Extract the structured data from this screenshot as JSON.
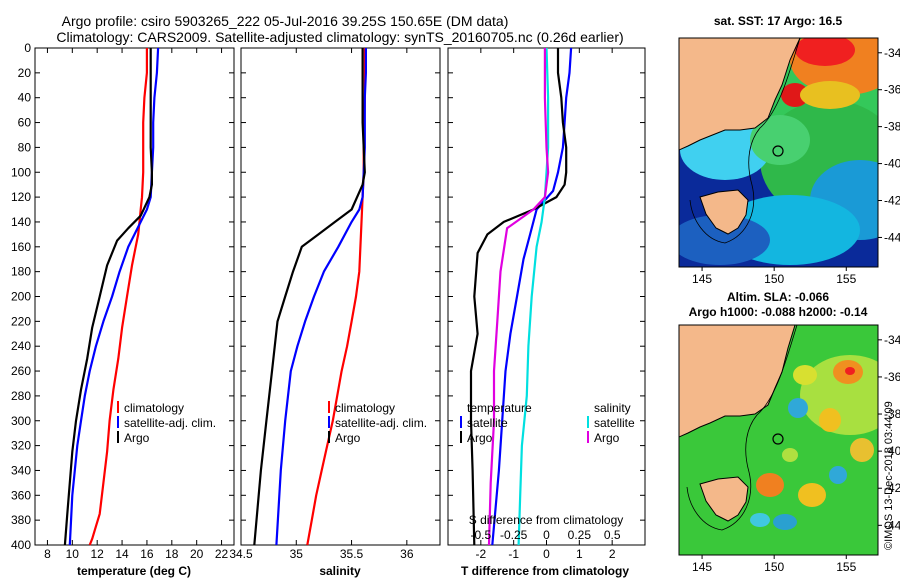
{
  "header": {
    "title_line1": "Argo profile: csiro 5903265_222 05-Jul-2016 39.25S 150.65E (DM data)",
    "title_line2": "Climatology: CARS2009. Satellite-adjusted climatology: synTS_20160705.nc (0.26d earlier)"
  },
  "colors": {
    "climatology": "#ff0000",
    "satellite_adj": "#0000ff",
    "argo": "#000000",
    "s_satellite": "#00e0e0",
    "s_argo": "#e000e0"
  },
  "chart_data": [
    {
      "type": "line",
      "title": "",
      "xlabel": "temperature (deg C)",
      "ylabel": "",
      "xlim": [
        7,
        23
      ],
      "ylim": [
        400,
        0
      ],
      "xticks": [
        "8",
        "10",
        "12",
        "14",
        "16",
        "18",
        "20",
        "22"
      ],
      "yticks": [
        "0",
        "20",
        "40",
        "60",
        "80",
        "100",
        "120",
        "140",
        "160",
        "180",
        "200",
        "220",
        "240",
        "260",
        "280",
        "300",
        "320",
        "340",
        "360",
        "380",
        "400"
      ],
      "legend": [
        "climatology",
        "satellite-adj. clim.",
        "Argo"
      ],
      "series": [
        {
          "name": "climatology",
          "color": "#ff0000",
          "x": [
            16.0,
            16.0,
            15.8,
            15.7,
            15.7,
            15.7,
            15.6,
            15.5,
            15.4,
            15.3,
            15.1,
            14.8,
            14.4,
            14.0,
            13.7,
            13.3,
            13.0,
            12.8,
            12.5,
            12.2,
            11.9,
            11.6,
            11.4
          ],
          "y": [
            0,
            20,
            40,
            60,
            80,
            100,
            120,
            130,
            140,
            150,
            160,
            175,
            200,
            225,
            250,
            275,
            300,
            325,
            350,
            375,
            385,
            395,
            400
          ]
        },
        {
          "name": "satellite-adj. clim.",
          "color": "#0000ff",
          "x": [
            16.9,
            16.8,
            16.6,
            16.5,
            16.5,
            16.4,
            16.3,
            16.0,
            15.5,
            15.0,
            14.5,
            13.8,
            13.2,
            12.5,
            11.9,
            11.4,
            11.0,
            10.7,
            10.4,
            10.0,
            9.8
          ],
          "y": [
            0,
            20,
            40,
            60,
            80,
            100,
            120,
            130,
            140,
            150,
            160,
            180,
            200,
            220,
            240,
            260,
            280,
            300,
            320,
            360,
            400
          ]
        },
        {
          "name": "Argo",
          "color": "#000000",
          "x": [
            16.3,
            16.3,
            16.3,
            16.3,
            16.3,
            16.4,
            16.4,
            16.2,
            15.5,
            14.5,
            13.6,
            12.8,
            12.2,
            11.6,
            11.2,
            10.7,
            10.3,
            10.0,
            9.8,
            9.6,
            9.4
          ],
          "y": [
            0,
            20,
            40,
            60,
            80,
            100,
            110,
            120,
            135,
            145,
            155,
            175,
            200,
            225,
            250,
            275,
            300,
            325,
            350,
            375,
            400
          ]
        }
      ]
    },
    {
      "type": "line",
      "title": "",
      "xlabel": "salinity",
      "ylabel": "",
      "xlim": [
        34.5,
        36.3
      ],
      "ylim": [
        400,
        0
      ],
      "xticks": [
        "34.5",
        "35",
        "35.5",
        "36"
      ],
      "legend": [
        "climatology",
        "satellite-adj. clim.",
        "Argo"
      ],
      "series": [
        {
          "name": "climatology",
          "color": "#ff0000",
          "x": [
            35.62,
            35.62,
            35.61,
            35.61,
            35.6,
            35.59,
            35.58,
            35.57,
            35.54,
            35.5,
            35.46,
            35.41,
            35.37,
            35.33,
            35.28,
            35.23,
            35.18,
            35.14,
            35.1
          ],
          "y": [
            0,
            40,
            80,
            100,
            120,
            140,
            160,
            180,
            200,
            220,
            240,
            260,
            280,
            300,
            320,
            340,
            360,
            380,
            400
          ]
        },
        {
          "name": "satellite-adj. clim.",
          "color": "#0000ff",
          "x": [
            35.63,
            35.63,
            35.62,
            35.62,
            35.61,
            35.6,
            35.57,
            35.5,
            35.38,
            35.25,
            35.16,
            35.08,
            35.01,
            34.95,
            34.9,
            34.86,
            34.82
          ],
          "y": [
            0,
            20,
            40,
            80,
            100,
            120,
            130,
            140,
            160,
            180,
            200,
            220,
            240,
            260,
            300,
            340,
            400
          ]
        },
        {
          "name": "Argo",
          "color": "#000000",
          "x": [
            35.6,
            35.6,
            35.6,
            35.6,
            35.61,
            35.62,
            35.6,
            35.5,
            35.35,
            35.2,
            35.05,
            34.97,
            34.9,
            34.83,
            34.78,
            34.73,
            34.68,
            34.65,
            34.62
          ],
          "y": [
            0,
            20,
            40,
            60,
            80,
            100,
            110,
            130,
            140,
            150,
            160,
            180,
            200,
            220,
            260,
            300,
            340,
            370,
            400
          ]
        }
      ]
    },
    {
      "type": "line",
      "title": "",
      "xlabel": "T difference from climatology",
      "secondary_xlabel": "S difference from climatology",
      "xlim": [
        -3,
        3
      ],
      "ylim": [
        400,
        0
      ],
      "xticks": [
        "-2",
        "-1",
        "0",
        "1",
        "2"
      ],
      "secondary_xticks": [
        "-0.5",
        "-0.25",
        "0",
        "0.25",
        "0.5"
      ],
      "legend": {
        "temperature": [
          "satellite",
          "Argo"
        ],
        "salinity": [
          "satellite",
          "Argo"
        ]
      },
      "series": [
        {
          "name": "T satellite",
          "color": "#0000ff",
          "x": [
            0.75,
            0.7,
            0.6,
            0.55,
            0.5,
            0.35,
            0.2,
            -0.3,
            -0.5,
            -0.7,
            -0.9,
            -1.1,
            -1.25,
            -1.35,
            -1.45,
            -1.55,
            -1.65
          ],
          "y": [
            0,
            20,
            40,
            60,
            80,
            100,
            115,
            130,
            150,
            170,
            200,
            230,
            260,
            300,
            340,
            370,
            400
          ]
        },
        {
          "name": "T Argo",
          "color": "#000000",
          "x": [
            0.35,
            0.35,
            0.45,
            0.5,
            0.6,
            0.6,
            0.55,
            0.3,
            -0.4,
            -1.3,
            -1.8,
            -2.1,
            -2.2,
            -2.1,
            -2.3,
            -2.3,
            -2.25,
            -2.2
          ],
          "y": [
            0,
            20,
            40,
            60,
            80,
            100,
            110,
            120,
            130,
            140,
            150,
            165,
            200,
            230,
            260,
            300,
            340,
            400
          ]
        },
        {
          "name": "S satellite",
          "color": "#00e0e0",
          "x": [
            0.0,
            0.05,
            0.05,
            0.0,
            -0.05,
            -0.15,
            -0.3,
            -0.45,
            -0.55,
            -0.6,
            -0.75,
            -0.8,
            -0.85
          ],
          "y": [
            0,
            40,
            80,
            100,
            120,
            140,
            160,
            200,
            240,
            280,
            320,
            360,
            400
          ]
        },
        {
          "name": "S Argo",
          "color": "#e000e0",
          "x": [
            -0.05,
            -0.05,
            0.0,
            0.05,
            -0.05,
            -0.4,
            -1.2,
            -1.4,
            -1.5,
            -1.6,
            -1.6,
            -1.7,
            -1.75
          ],
          "y": [
            0,
            40,
            80,
            100,
            120,
            130,
            145,
            180,
            220,
            260,
            300,
            350,
            400
          ]
        }
      ]
    }
  ],
  "legends": {
    "temperature": [
      "climatology",
      "satellite-adj. clim.",
      "Argo"
    ],
    "salinity": [
      "climatology",
      "satellite-adj. clim.",
      "Argo"
    ],
    "difference": {
      "temperature_heading": "temperature",
      "salinity_heading": "salinity",
      "t_items": [
        "satellite",
        "Argo"
      ],
      "s_items": [
        "satellite",
        "Argo"
      ]
    }
  },
  "maps": {
    "sst": {
      "title": "sat. SST: 17 Argo: 16.5",
      "lat_ticks": [
        "-34",
        "-36",
        "-38",
        "-40",
        "-42",
        "-44"
      ],
      "lon_ticks": [
        "145",
        "150",
        "155"
      ],
      "argo_position": {
        "lon": 150.65,
        "lat": -39.25
      }
    },
    "sla": {
      "title_line1": "Altim. SLA: -0.066",
      "title_line2": "Argo h1000: -0.088 h2000: -0.14",
      "lat_ticks": [
        "-34",
        "-36",
        "-38",
        "-40",
        "-42",
        "-44"
      ],
      "lon_ticks": [
        "145",
        "150",
        "155"
      ],
      "argo_position": {
        "lon": 150.65,
        "lat": -39.25
      }
    }
  },
  "credit": "©IMOS 13-Dec-2018 03:44:09"
}
